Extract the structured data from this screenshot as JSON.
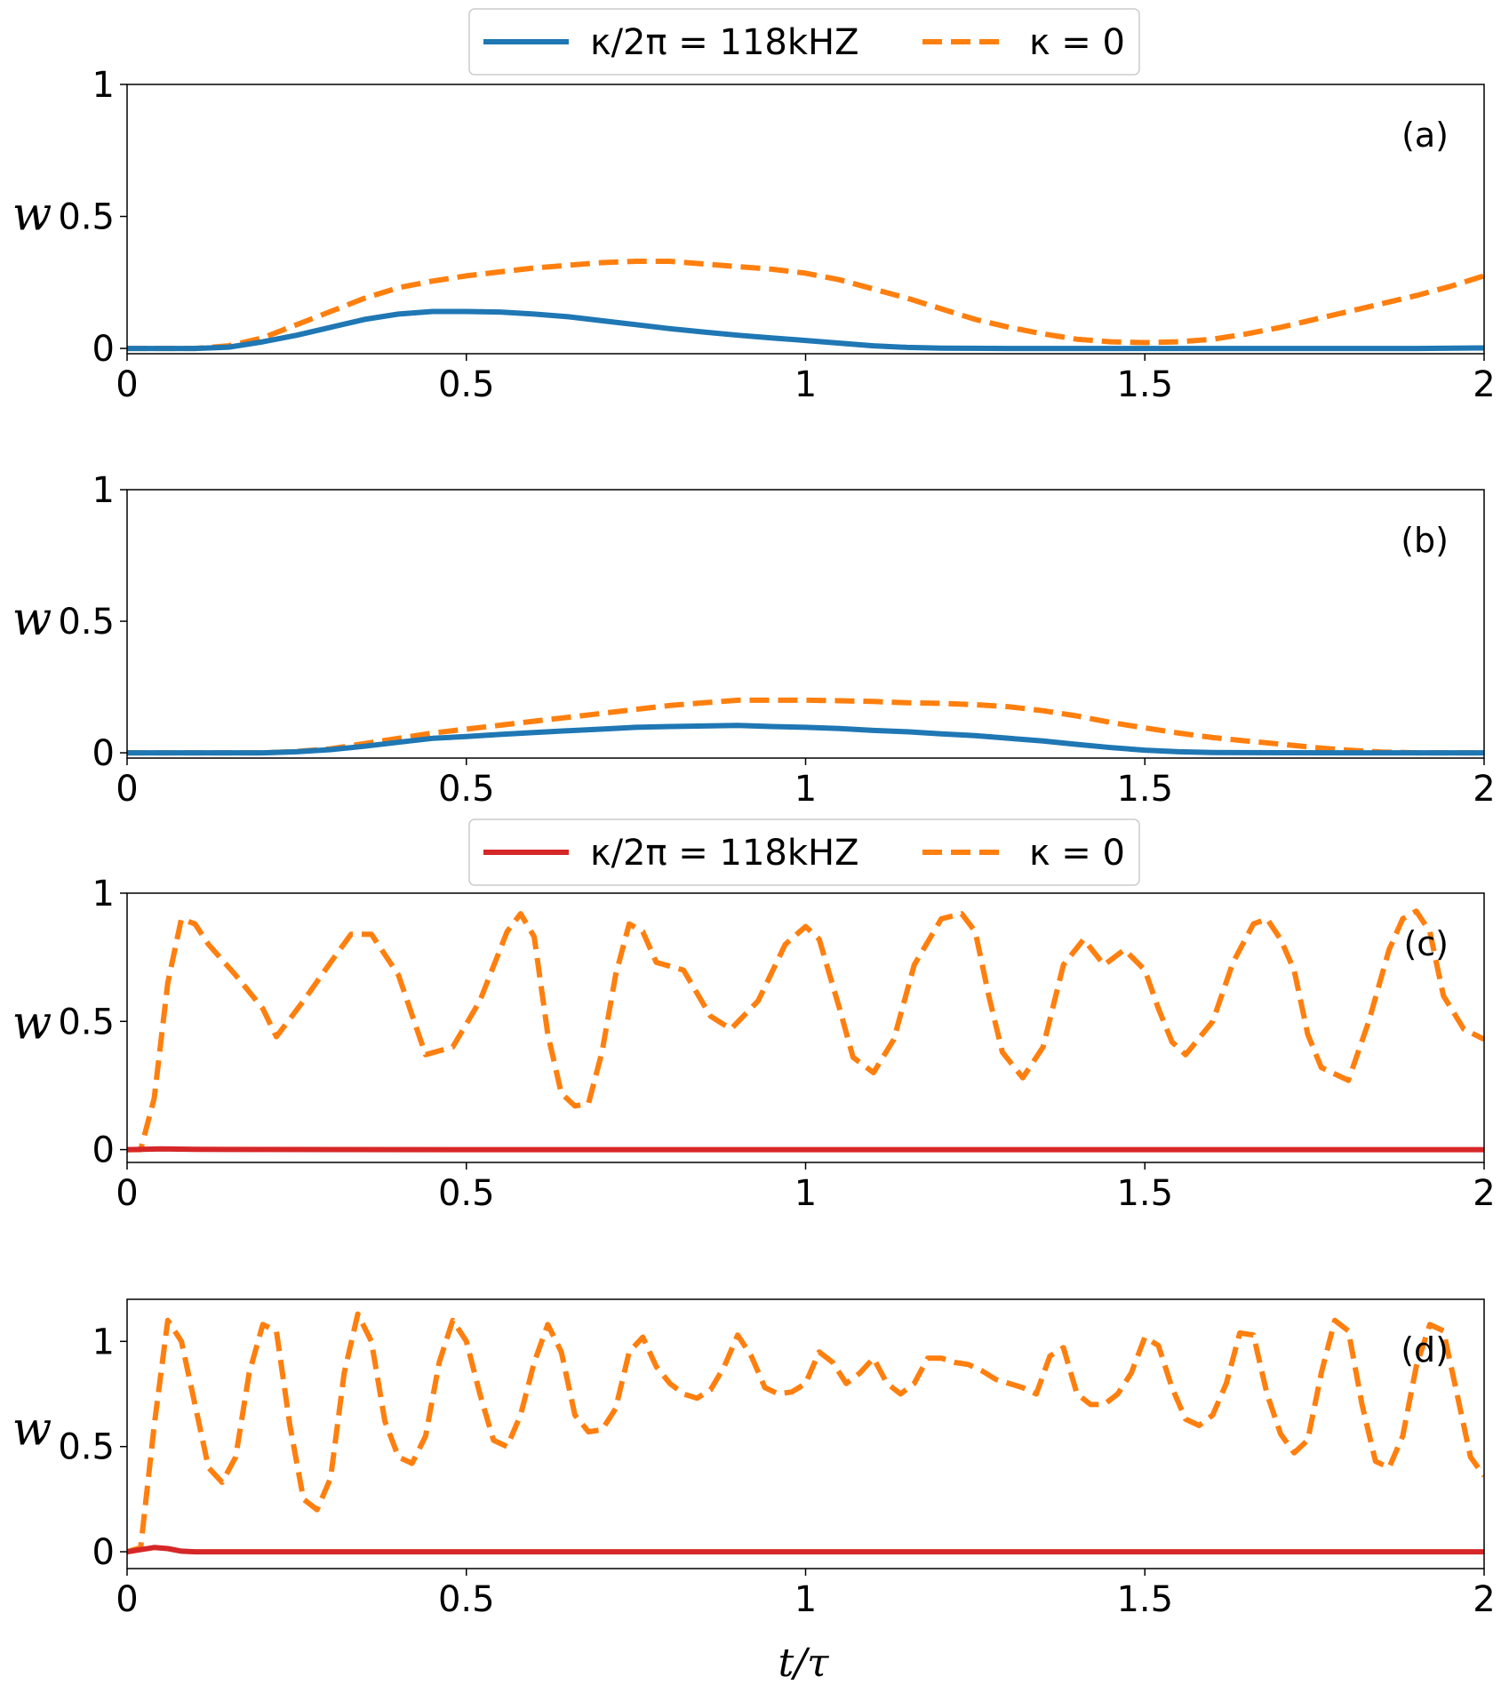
{
  "colors": {
    "blue": "#1f77b4",
    "orange": "#ff7f0e",
    "red": "#d62728",
    "axis": "#000000"
  },
  "legends": [
    {
      "entries": [
        {
          "label": "κ/2π = 118kHZ",
          "color": "#1f77b4",
          "style": "solid"
        },
        {
          "label": "κ = 0",
          "color": "#ff7f0e",
          "style": "dashed"
        }
      ]
    },
    {
      "entries": [
        {
          "label": "κ/2π = 118kHZ",
          "color": "#d62728",
          "style": "solid"
        },
        {
          "label": "κ = 0",
          "color": "#ff7f0e",
          "style": "dashed"
        }
      ]
    }
  ],
  "x_label": "t/τ",
  "chart_data": [
    {
      "type": "line",
      "panel": "(a)",
      "ylabel": "w",
      "xlim": [
        0,
        2
      ],
      "ylim": [
        -0.02,
        1
      ],
      "xticks": [
        "0",
        "0.5",
        "1",
        "1.5",
        "2"
      ],
      "xtick_values": [
        0,
        0.5,
        1,
        1.5,
        2
      ],
      "yticks": [
        "0",
        "0.5",
        "1"
      ],
      "ytick_values": [
        0,
        0.5,
        1
      ],
      "series": [
        {
          "name": "κ = 0",
          "color": "#ff7f0e",
          "style": "dashed",
          "x": [
            0,
            0.05,
            0.1,
            0.15,
            0.2,
            0.25,
            0.3,
            0.35,
            0.4,
            0.45,
            0.5,
            0.55,
            0.6,
            0.65,
            0.7,
            0.75,
            0.8,
            0.85,
            0.9,
            0.95,
            1.0,
            1.05,
            1.1,
            1.15,
            1.2,
            1.25,
            1.3,
            1.35,
            1.4,
            1.45,
            1.5,
            1.55,
            1.6,
            1.65,
            1.7,
            1.75,
            1.8,
            1.85,
            1.9,
            1.95,
            2.0
          ],
          "y": [
            0,
            0,
            0,
            0.01,
            0.04,
            0.09,
            0.14,
            0.19,
            0.23,
            0.255,
            0.275,
            0.29,
            0.305,
            0.315,
            0.325,
            0.33,
            0.33,
            0.32,
            0.31,
            0.3,
            0.285,
            0.26,
            0.225,
            0.19,
            0.15,
            0.11,
            0.08,
            0.055,
            0.035,
            0.025,
            0.022,
            0.025,
            0.035,
            0.055,
            0.08,
            0.11,
            0.14,
            0.17,
            0.2,
            0.235,
            0.275
          ]
        },
        {
          "name": "κ/2π = 118kHZ",
          "color": "#1f77b4",
          "style": "solid",
          "x": [
            0,
            0.1,
            0.15,
            0.2,
            0.25,
            0.3,
            0.35,
            0.4,
            0.45,
            0.5,
            0.55,
            0.6,
            0.65,
            0.7,
            0.75,
            0.8,
            0.85,
            0.9,
            0.95,
            1.0,
            1.05,
            1.1,
            1.15,
            1.2,
            1.3,
            1.5,
            1.7,
            1.9,
            2.0
          ],
          "y": [
            0,
            0,
            0.005,
            0.025,
            0.05,
            0.08,
            0.11,
            0.13,
            0.14,
            0.14,
            0.138,
            0.13,
            0.12,
            0.105,
            0.09,
            0.075,
            0.062,
            0.05,
            0.04,
            0.03,
            0.02,
            0.01,
            0.004,
            0.001,
            0,
            0,
            0,
            0,
            0.002
          ]
        }
      ]
    },
    {
      "type": "line",
      "panel": "(b)",
      "ylabel": "w",
      "xlim": [
        0,
        2
      ],
      "ylim": [
        -0.02,
        1
      ],
      "xticks": [
        "0",
        "0.5",
        "1",
        "1.5",
        "2"
      ],
      "xtick_values": [
        0,
        0.5,
        1,
        1.5,
        2
      ],
      "yticks": [
        "0",
        "0.5",
        "1"
      ],
      "ytick_values": [
        0,
        0.5,
        1
      ],
      "series": [
        {
          "name": "κ = 0",
          "color": "#ff7f0e",
          "style": "dashed",
          "x": [
            0,
            0.1,
            0.2,
            0.25,
            0.3,
            0.35,
            0.4,
            0.45,
            0.5,
            0.55,
            0.6,
            0.65,
            0.7,
            0.75,
            0.8,
            0.85,
            0.9,
            0.95,
            1.0,
            1.05,
            1.1,
            1.15,
            1.2,
            1.25,
            1.3,
            1.35,
            1.4,
            1.45,
            1.5,
            1.55,
            1.6,
            1.65,
            1.7,
            1.75,
            1.8,
            1.85,
            1.9,
            2.0
          ],
          "y": [
            0,
            0,
            0,
            0.005,
            0.015,
            0.035,
            0.055,
            0.075,
            0.09,
            0.105,
            0.12,
            0.135,
            0.15,
            0.165,
            0.18,
            0.19,
            0.2,
            0.2,
            0.2,
            0.198,
            0.195,
            0.19,
            0.188,
            0.183,
            0.175,
            0.16,
            0.14,
            0.115,
            0.095,
            0.075,
            0.058,
            0.045,
            0.033,
            0.02,
            0.01,
            0.003,
            0,
            0
          ]
        },
        {
          "name": "κ/2π = 118kHZ",
          "color": "#1f77b4",
          "style": "solid",
          "x": [
            0,
            0.2,
            0.25,
            0.3,
            0.35,
            0.4,
            0.45,
            0.5,
            0.55,
            0.6,
            0.65,
            0.7,
            0.75,
            0.8,
            0.85,
            0.9,
            0.95,
            1.0,
            1.05,
            1.1,
            1.15,
            1.2,
            1.25,
            1.3,
            1.35,
            1.4,
            1.45,
            1.5,
            1.55,
            1.6,
            1.8,
            2.0
          ],
          "y": [
            0,
            0,
            0.004,
            0.012,
            0.025,
            0.04,
            0.055,
            0.062,
            0.07,
            0.077,
            0.084,
            0.09,
            0.097,
            0.1,
            0.102,
            0.104,
            0.1,
            0.097,
            0.092,
            0.085,
            0.08,
            0.072,
            0.065,
            0.055,
            0.045,
            0.032,
            0.02,
            0.01,
            0.004,
            0.001,
            0,
            0
          ]
        }
      ]
    },
    {
      "type": "line",
      "panel": "(c)",
      "ylabel": "w",
      "xlim": [
        0,
        2
      ],
      "ylim": [
        -0.05,
        1
      ],
      "xticks": [
        "0",
        "0.5",
        "1",
        "1.5",
        "2"
      ],
      "xtick_values": [
        0,
        0.5,
        1,
        1.5,
        2
      ],
      "yticks": [
        "0",
        "0.5",
        "1"
      ],
      "ytick_values": [
        0,
        0.5,
        1
      ],
      "series": [
        {
          "name": "κ = 0",
          "color": "#ff7f0e",
          "style": "dashed",
          "x": [
            0,
            0.02,
            0.04,
            0.06,
            0.08,
            0.1,
            0.12,
            0.16,
            0.2,
            0.22,
            0.26,
            0.3,
            0.33,
            0.36,
            0.4,
            0.44,
            0.48,
            0.52,
            0.56,
            0.58,
            0.6,
            0.62,
            0.64,
            0.66,
            0.68,
            0.7,
            0.72,
            0.74,
            0.76,
            0.78,
            0.82,
            0.86,
            0.89,
            0.93,
            0.97,
            1.0,
            1.02,
            1.05,
            1.07,
            1.1,
            1.13,
            1.16,
            1.2,
            1.23,
            1.25,
            1.27,
            1.29,
            1.32,
            1.35,
            1.38,
            1.41,
            1.44,
            1.47,
            1.5,
            1.52,
            1.54,
            1.56,
            1.6,
            1.63,
            1.66,
            1.68,
            1.7,
            1.72,
            1.74,
            1.76,
            1.8,
            1.83,
            1.86,
            1.88,
            1.9,
            1.92,
            1.94,
            1.97,
            2.0
          ],
          "y": [
            0,
            0,
            0.2,
            0.65,
            0.9,
            0.88,
            0.8,
            0.68,
            0.55,
            0.44,
            0.58,
            0.73,
            0.84,
            0.84,
            0.68,
            0.37,
            0.4,
            0.58,
            0.85,
            0.92,
            0.83,
            0.45,
            0.22,
            0.17,
            0.18,
            0.38,
            0.68,
            0.88,
            0.85,
            0.73,
            0.7,
            0.52,
            0.47,
            0.58,
            0.8,
            0.87,
            0.82,
            0.55,
            0.36,
            0.3,
            0.43,
            0.72,
            0.9,
            0.92,
            0.85,
            0.6,
            0.38,
            0.28,
            0.4,
            0.72,
            0.82,
            0.72,
            0.78,
            0.7,
            0.55,
            0.42,
            0.37,
            0.5,
            0.73,
            0.88,
            0.9,
            0.82,
            0.7,
            0.45,
            0.32,
            0.27,
            0.5,
            0.78,
            0.9,
            0.93,
            0.85,
            0.6,
            0.47,
            0.43
          ]
        },
        {
          "name": "κ/2π = 118kHZ",
          "color": "#d62728",
          "style": "solid",
          "x": [
            0,
            0.05,
            0.1,
            0.5,
            1.0,
            1.5,
            2.0
          ],
          "y": [
            0,
            0.003,
            0.001,
            0,
            0,
            0,
            0
          ]
        }
      ]
    },
    {
      "type": "line",
      "panel": "(d)",
      "ylabel": "w",
      "xlim": [
        0,
        2
      ],
      "ylim": [
        -0.08,
        1.2
      ],
      "xticks": [
        "0",
        "0.5",
        "1",
        "1.5",
        "2"
      ],
      "xtick_values": [
        0,
        0.5,
        1,
        1.5,
        2
      ],
      "yticks": [
        "0",
        "0.5",
        "1"
      ],
      "ytick_values": [
        0,
        0.5,
        1
      ],
      "series": [
        {
          "name": "κ = 0",
          "color": "#ff7f0e",
          "style": "dashed",
          "x": [
            0,
            0.02,
            0.04,
            0.06,
            0.08,
            0.1,
            0.12,
            0.14,
            0.16,
            0.18,
            0.2,
            0.22,
            0.24,
            0.26,
            0.28,
            0.3,
            0.32,
            0.34,
            0.36,
            0.38,
            0.4,
            0.42,
            0.44,
            0.46,
            0.48,
            0.5,
            0.52,
            0.54,
            0.56,
            0.58,
            0.6,
            0.62,
            0.64,
            0.66,
            0.68,
            0.7,
            0.72,
            0.74,
            0.76,
            0.78,
            0.8,
            0.82,
            0.84,
            0.86,
            0.88,
            0.9,
            0.92,
            0.94,
            0.96,
            0.98,
            1.0,
            1.02,
            1.04,
            1.06,
            1.08,
            1.1,
            1.12,
            1.14,
            1.16,
            1.18,
            1.2,
            1.22,
            1.24,
            1.26,
            1.28,
            1.3,
            1.32,
            1.34,
            1.36,
            1.38,
            1.4,
            1.42,
            1.44,
            1.46,
            1.48,
            1.5,
            1.52,
            1.54,
            1.56,
            1.58,
            1.6,
            1.62,
            1.64,
            1.66,
            1.68,
            1.7,
            1.72,
            1.74,
            1.76,
            1.78,
            1.8,
            1.82,
            1.84,
            1.86,
            1.88,
            1.9,
            1.92,
            1.94,
            1.96,
            1.98,
            2.0
          ],
          "y": [
            0,
            0.02,
            0.6,
            1.1,
            1.0,
            0.7,
            0.4,
            0.33,
            0.45,
            0.85,
            1.08,
            1.05,
            0.6,
            0.25,
            0.2,
            0.35,
            0.85,
            1.13,
            1.0,
            0.62,
            0.45,
            0.42,
            0.55,
            0.9,
            1.1,
            1.0,
            0.75,
            0.53,
            0.5,
            0.65,
            0.9,
            1.08,
            0.95,
            0.65,
            0.57,
            0.58,
            0.68,
            0.95,
            1.02,
            0.88,
            0.8,
            0.75,
            0.73,
            0.77,
            0.88,
            1.03,
            0.93,
            0.78,
            0.75,
            0.76,
            0.8,
            0.95,
            0.9,
            0.8,
            0.85,
            0.92,
            0.8,
            0.75,
            0.8,
            0.92,
            0.92,
            0.9,
            0.89,
            0.86,
            0.82,
            0.8,
            0.78,
            0.75,
            0.93,
            0.97,
            0.75,
            0.7,
            0.7,
            0.75,
            0.85,
            1.02,
            0.98,
            0.78,
            0.63,
            0.6,
            0.65,
            0.8,
            1.04,
            1.03,
            0.75,
            0.56,
            0.47,
            0.53,
            0.85,
            1.1,
            1.05,
            0.7,
            0.43,
            0.4,
            0.55,
            0.88,
            1.08,
            1.05,
            0.75,
            0.45,
            0.36
          ]
        },
        {
          "name": "κ/2π = 118kHZ",
          "color": "#d62728",
          "style": "solid",
          "x": [
            0,
            0.02,
            0.04,
            0.06,
            0.08,
            0.1,
            0.5,
            1.0,
            1.5,
            2.0
          ],
          "y": [
            0,
            0.01,
            0.02,
            0.015,
            0.003,
            0,
            0,
            0,
            0,
            0
          ]
        }
      ]
    }
  ]
}
